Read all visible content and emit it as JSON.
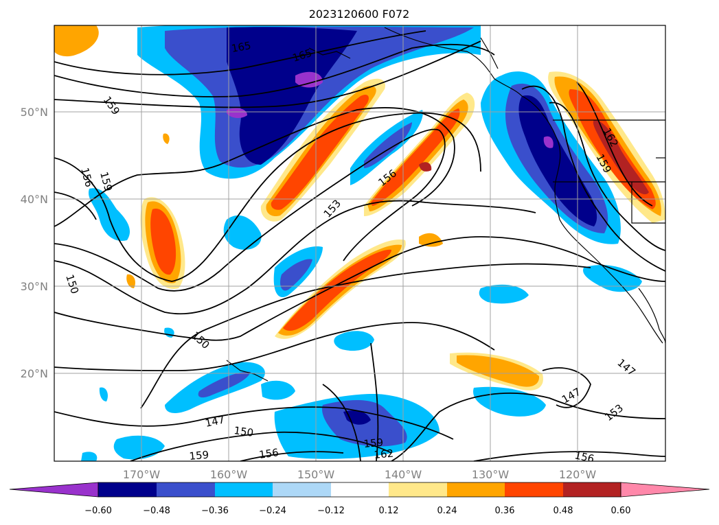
{
  "title": "2023120600 F072",
  "lat_labels": [
    "50°N",
    "40°N",
    "30°N",
    "20°N"
  ],
  "lon_labels": [
    "170°W",
    "160°W",
    "150°W",
    "140°W",
    "130°W",
    "120°W"
  ],
  "colorbar": {
    "ticks": [
      "−0.60",
      "−0.48",
      "−0.36",
      "−0.24",
      "−0.12",
      "0.12",
      "0.24",
      "0.36",
      "0.48",
      "0.60"
    ],
    "colors": [
      "#9932cc",
      "#00008b",
      "#3a4fcc",
      "#00bfff",
      "#add8f7",
      "#ffffff",
      "#ffe88a",
      "#ffa500",
      "#ff4500",
      "#b22222",
      "#ff88aa"
    ]
  },
  "contour_labels": [
    "165",
    "165",
    "159",
    "159",
    "156",
    "153",
    "156",
    "150",
    "150",
    "147",
    "150",
    "156",
    "159",
    "162",
    "159",
    "147",
    "153",
    "156",
    "147",
    "159",
    "162"
  ]
}
